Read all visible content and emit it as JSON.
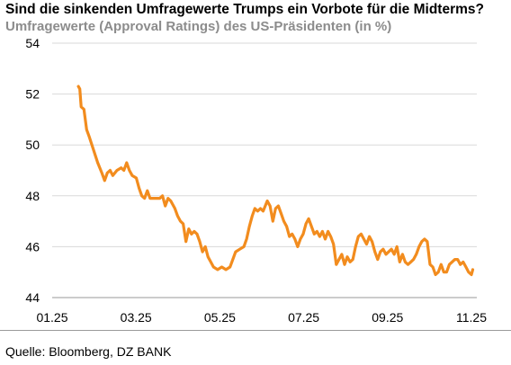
{
  "header": {
    "title": "Sind die sinkenden Umfragewerte Trumps ein Vorbote für die Midterms?",
    "subtitle": "Umfragewerte (Approval Ratings) des US-Präsidenten (in %)"
  },
  "footer": {
    "source": "Quelle: Bloomberg, DZ BANK"
  },
  "colors": {
    "line": "#f28c1e",
    "grid": "#d9d9d9",
    "axis": "#999999"
  },
  "chart_data": {
    "type": "line",
    "title": "Sind die sinkenden Umfragewerte Trumps ein Vorbote für die Midterms?",
    "subtitle": "Umfragewerte (Approval Ratings) des US-Präsidenten (in %)",
    "xlabel": "",
    "ylabel": "",
    "ylim": [
      44,
      54
    ],
    "yticks": [
      44,
      46,
      48,
      50,
      52,
      54
    ],
    "xlim": [
      "2025-01-01",
      "2025-11-01"
    ],
    "xticks": [
      "01.25",
      "03.25",
      "05.25",
      "07.25",
      "09.25",
      "11.25"
    ],
    "grid": "horizontal",
    "legend": "none",
    "series": [
      {
        "values": [
          [
            "2025-01-20",
            52.3
          ],
          [
            "2025-01-21",
            52.2
          ],
          [
            "2025-01-22",
            51.5
          ],
          [
            "2025-01-24",
            51.4
          ],
          [
            "2025-01-26",
            50.6
          ],
          [
            "2025-01-28",
            50.3
          ],
          [
            "2025-01-31",
            49.8
          ],
          [
            "2025-02-03",
            49.3
          ],
          [
            "2025-02-06",
            48.9
          ],
          [
            "2025-02-08",
            48.6
          ],
          [
            "2025-02-10",
            48.9
          ],
          [
            "2025-02-12",
            49.0
          ],
          [
            "2025-02-14",
            48.8
          ],
          [
            "2025-02-17",
            49.0
          ],
          [
            "2025-02-20",
            49.1
          ],
          [
            "2025-02-22",
            49.0
          ],
          [
            "2025-02-24",
            49.3
          ],
          [
            "2025-02-26",
            49.0
          ],
          [
            "2025-02-28",
            48.8
          ],
          [
            "2025-03-03",
            48.7
          ],
          [
            "2025-03-05",
            48.3
          ],
          [
            "2025-03-07",
            48.0
          ],
          [
            "2025-03-09",
            47.9
          ],
          [
            "2025-03-11",
            48.2
          ],
          [
            "2025-03-13",
            47.9
          ],
          [
            "2025-03-16",
            47.9
          ],
          [
            "2025-03-20",
            47.9
          ],
          [
            "2025-03-22",
            48.0
          ],
          [
            "2025-03-24",
            47.6
          ],
          [
            "2025-03-26",
            47.9
          ],
          [
            "2025-03-28",
            47.8
          ],
          [
            "2025-03-31",
            47.5
          ],
          [
            "2025-04-02",
            47.2
          ],
          [
            "2025-04-04",
            47.0
          ],
          [
            "2025-04-06",
            46.9
          ],
          [
            "2025-04-08",
            46.2
          ],
          [
            "2025-04-10",
            46.7
          ],
          [
            "2025-04-12",
            46.5
          ],
          [
            "2025-04-14",
            46.6
          ],
          [
            "2025-04-16",
            46.5
          ],
          [
            "2025-04-18",
            46.2
          ],
          [
            "2025-04-20",
            45.8
          ],
          [
            "2025-04-22",
            46.0
          ],
          [
            "2025-04-24",
            45.6
          ],
          [
            "2025-04-26",
            45.4
          ],
          [
            "2025-04-28",
            45.2
          ],
          [
            "2025-05-01",
            45.1
          ],
          [
            "2025-05-04",
            45.2
          ],
          [
            "2025-05-07",
            45.1
          ],
          [
            "2025-05-10",
            45.2
          ],
          [
            "2025-05-12",
            45.5
          ],
          [
            "2025-05-14",
            45.8
          ],
          [
            "2025-05-17",
            45.9
          ],
          [
            "2025-05-20",
            46.0
          ],
          [
            "2025-05-22",
            46.3
          ],
          [
            "2025-05-24",
            46.8
          ],
          [
            "2025-05-26",
            47.2
          ],
          [
            "2025-05-28",
            47.5
          ],
          [
            "2025-05-30",
            47.4
          ],
          [
            "2025-06-01",
            47.5
          ],
          [
            "2025-06-03",
            47.4
          ],
          [
            "2025-06-06",
            47.8
          ],
          [
            "2025-06-08",
            47.6
          ],
          [
            "2025-06-10",
            47.0
          ],
          [
            "2025-06-12",
            47.5
          ],
          [
            "2025-06-14",
            47.6
          ],
          [
            "2025-06-16",
            47.3
          ],
          [
            "2025-06-18",
            47.0
          ],
          [
            "2025-06-20",
            46.8
          ],
          [
            "2025-06-22",
            46.4
          ],
          [
            "2025-06-24",
            46.5
          ],
          [
            "2025-06-26",
            46.3
          ],
          [
            "2025-06-28",
            46.0
          ],
          [
            "2025-06-30",
            46.3
          ],
          [
            "2025-07-02",
            46.5
          ],
          [
            "2025-07-04",
            46.9
          ],
          [
            "2025-07-06",
            47.1
          ],
          [
            "2025-07-08",
            46.8
          ],
          [
            "2025-07-10",
            46.5
          ],
          [
            "2025-07-12",
            46.6
          ],
          [
            "2025-07-14",
            46.4
          ],
          [
            "2025-07-16",
            46.6
          ],
          [
            "2025-07-18",
            46.3
          ],
          [
            "2025-07-20",
            46.6
          ],
          [
            "2025-07-22",
            46.4
          ],
          [
            "2025-07-24",
            46.1
          ],
          [
            "2025-07-26",
            45.3
          ],
          [
            "2025-07-28",
            45.5
          ],
          [
            "2025-07-30",
            45.7
          ],
          [
            "2025-08-01",
            45.3
          ],
          [
            "2025-08-03",
            45.6
          ],
          [
            "2025-08-05",
            45.4
          ],
          [
            "2025-08-07",
            45.5
          ],
          [
            "2025-08-09",
            46.0
          ],
          [
            "2025-08-11",
            46.4
          ],
          [
            "2025-08-13",
            46.5
          ],
          [
            "2025-08-15",
            46.3
          ],
          [
            "2025-08-17",
            46.1
          ],
          [
            "2025-08-19",
            46.4
          ],
          [
            "2025-08-21",
            46.2
          ],
          [
            "2025-08-23",
            45.8
          ],
          [
            "2025-08-25",
            45.5
          ],
          [
            "2025-08-27",
            45.8
          ],
          [
            "2025-08-29",
            45.9
          ],
          [
            "2025-08-31",
            45.7
          ],
          [
            "2025-09-02",
            45.8
          ],
          [
            "2025-09-04",
            45.9
          ],
          [
            "2025-09-06",
            45.7
          ],
          [
            "2025-09-08",
            46.0
          ],
          [
            "2025-09-10",
            45.4
          ],
          [
            "2025-09-12",
            45.7
          ],
          [
            "2025-09-14",
            45.4
          ],
          [
            "2025-09-16",
            45.3
          ],
          [
            "2025-09-18",
            45.4
          ],
          [
            "2025-09-20",
            45.5
          ],
          [
            "2025-09-22",
            45.7
          ],
          [
            "2025-09-24",
            46.0
          ],
          [
            "2025-09-26",
            46.2
          ],
          [
            "2025-09-28",
            46.3
          ],
          [
            "2025-09-30",
            46.2
          ],
          [
            "2025-10-02",
            45.3
          ],
          [
            "2025-10-04",
            45.2
          ],
          [
            "2025-10-06",
            44.9
          ],
          [
            "2025-10-08",
            45.0
          ],
          [
            "2025-10-10",
            45.3
          ],
          [
            "2025-10-12",
            45.0
          ],
          [
            "2025-10-14",
            45.0
          ],
          [
            "2025-10-16",
            45.3
          ],
          [
            "2025-10-18",
            45.4
          ],
          [
            "2025-10-20",
            45.5
          ],
          [
            "2025-10-22",
            45.5
          ],
          [
            "2025-10-24",
            45.3
          ],
          [
            "2025-10-26",
            45.4
          ],
          [
            "2025-10-28",
            45.2
          ],
          [
            "2025-10-30",
            45.0
          ],
          [
            "2025-11-01",
            44.9
          ],
          [
            "2025-11-02",
            45.1
          ]
        ]
      }
    ]
  }
}
